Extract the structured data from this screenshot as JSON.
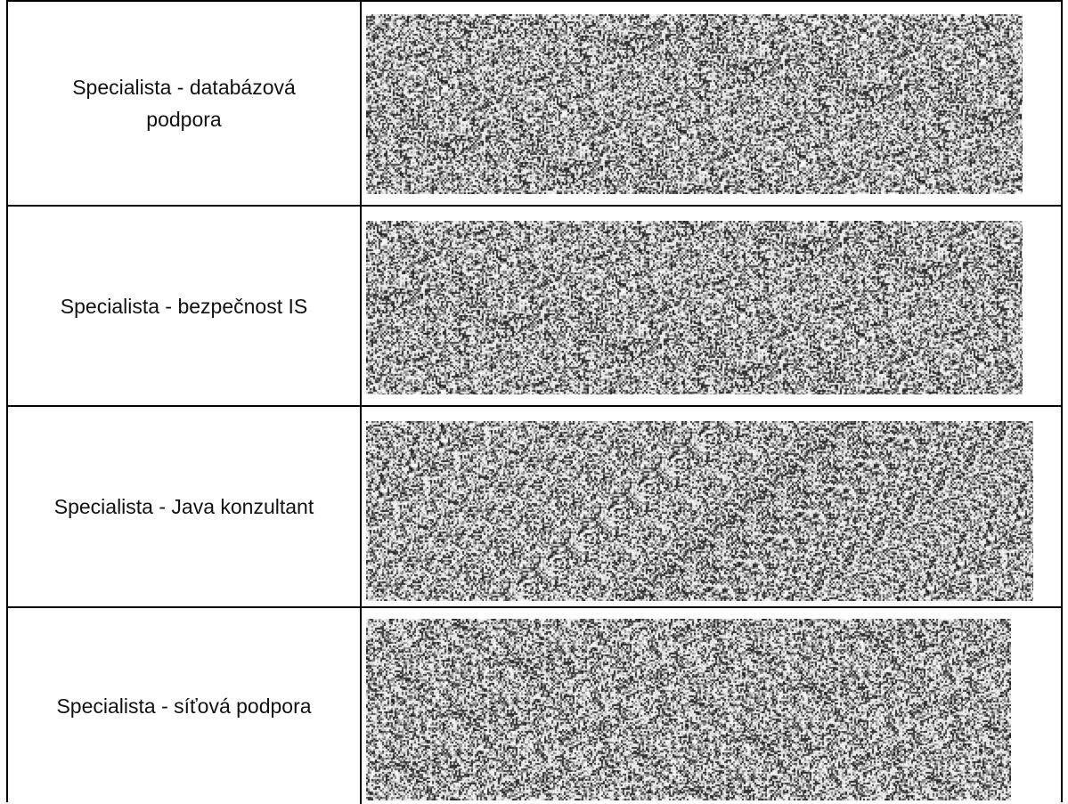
{
  "rows": [
    {
      "label": "Specialista - databázová podpora",
      "image_icon": "noise-image"
    },
    {
      "label": "Specialista - bezpečnost IS",
      "image_icon": "noise-image"
    },
    {
      "label": "Specialista - Java konzultant",
      "image_icon": "noise-image"
    },
    {
      "label": "Specialista - síťová podpora",
      "image_icon": "noise-image"
    }
  ]
}
